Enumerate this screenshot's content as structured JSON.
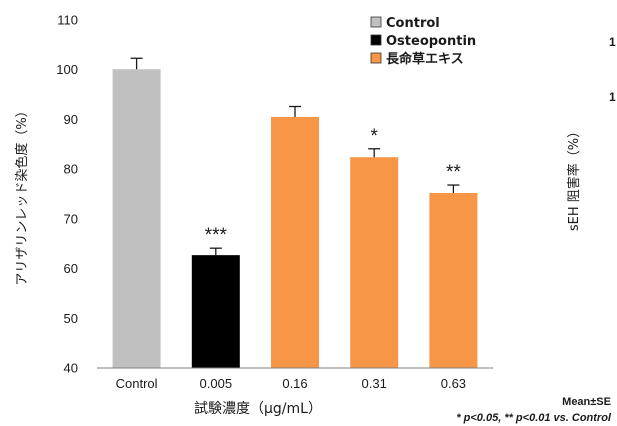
{
  "chart_data": {
    "type": "bar",
    "title": "",
    "ylabel": "アリザリンレッド染色度（%）",
    "xlabel": "試験濃度（μg/mL）",
    "ylim": [
      40,
      110
    ],
    "yticks": [
      40,
      50,
      60,
      70,
      80,
      90,
      100,
      110
    ],
    "categories": [
      "Control",
      "0.005",
      "0.16",
      "0.31",
      "0.63"
    ],
    "values": [
      100.1,
      62.7,
      90.5,
      82.4,
      75.2
    ],
    "errors": [
      2.2,
      1.4,
      2.1,
      1.7,
      1.6
    ],
    "significance": [
      "",
      "***",
      "",
      "*",
      "**"
    ],
    "bar_groups": [
      "Control",
      "Osteopontin",
      "長命草エキス",
      "長命草エキス",
      "長命草エキス"
    ],
    "legend": [
      {
        "label": "Control",
        "color": "#c0c0c0"
      },
      {
        "label": "Osteopontin",
        "color": "#000000"
      },
      {
        "label": "長命草エキス",
        "color": "#f79646"
      }
    ],
    "legend_position": "top-right",
    "grid": false,
    "notes": {
      "mean_se": "Mean±SE",
      "p_values": "* p<0.05, ** p<0.01 vs. Control"
    }
  },
  "adjacent_panel": {
    "ylabel": "sEH 阻害率（%）",
    "tick_fragments": [
      "1",
      "1"
    ]
  }
}
